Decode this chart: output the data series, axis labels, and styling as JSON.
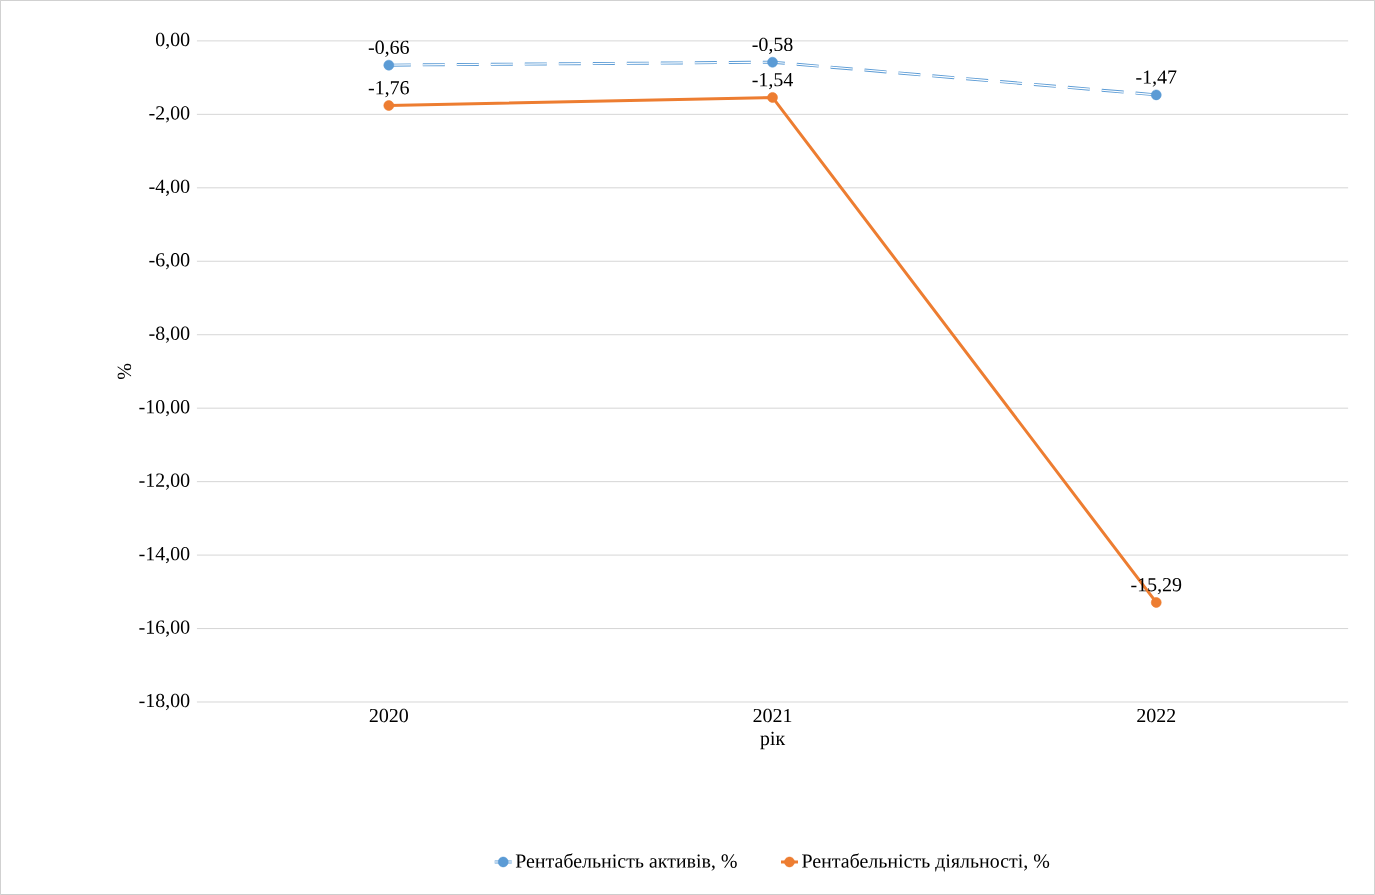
{
  "chart_data": {
    "type": "line",
    "xlabel": "рік",
    "ylabel": "%",
    "categories": [
      "2020",
      "2021",
      "2022"
    ],
    "series": [
      {
        "name": "Рентабельність активів, %",
        "color": "#5b9bd5",
        "line_style": "dashed",
        "values": [
          -0.66,
          -0.58,
          -1.47
        ],
        "value_labels": [
          "-0,66",
          "-0,58",
          "-1,47"
        ]
      },
      {
        "name": "Рентабельність діяльності, %",
        "color": "#ed7d31",
        "line_style": "solid",
        "values": [
          -1.76,
          -1.54,
          -15.29
        ],
        "value_labels": [
          "-1,76",
          "-1,54",
          "-15,29"
        ]
      }
    ],
    "ylim": [
      -18,
      0
    ],
    "yticks": [
      {
        "value": 0,
        "label": "0,00"
      },
      {
        "value": -2,
        "label": "-2,00"
      },
      {
        "value": -4,
        "label": "-4,00"
      },
      {
        "value": -6,
        "label": "-6,00"
      },
      {
        "value": -8,
        "label": "-8,00"
      },
      {
        "value": -10,
        "label": "-10,00"
      },
      {
        "value": -12,
        "label": "-12,00"
      },
      {
        "value": -14,
        "label": "-14,00"
      },
      {
        "value": -16,
        "label": "-16,00"
      },
      {
        "value": -18,
        "label": "-18,00"
      }
    ],
    "grid": "y",
    "legend": "bottom",
    "marker": "circle"
  }
}
